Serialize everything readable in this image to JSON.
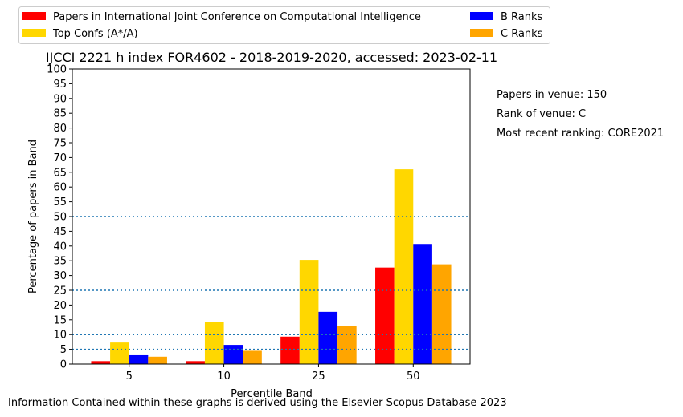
{
  "chart_data": {
    "type": "bar",
    "title": "IJCCI 2221 h index FOR4602 - 2018-2019-2020, accessed: 2023-02-11",
    "xlabel": "Percentile Band",
    "ylabel": "Percentage of papers in Band",
    "categories": [
      "5",
      "10",
      "25",
      "50"
    ],
    "ylim": [
      0,
      100
    ],
    "yticks": [
      "0",
      "5",
      "10",
      "15",
      "20",
      "25",
      "30",
      "35",
      "40",
      "45",
      "50",
      "55",
      "60",
      "65",
      "70",
      "75",
      "80",
      "85",
      "90",
      "95",
      "100"
    ],
    "reference_lines": [
      5,
      10,
      25,
      50
    ],
    "series": [
      {
        "name": "Papers in International Joint Conference on Computational Intelligence",
        "color": "#ff0000",
        "values": [
          1.0,
          1.0,
          9.3,
          32.7
        ]
      },
      {
        "name": "Top Confs (A*/A)",
        "color": "#ffd700",
        "values": [
          7.3,
          14.3,
          35.3,
          66.0
        ]
      },
      {
        "name": "B Ranks",
        "color": "#0000ff",
        "values": [
          3.0,
          6.5,
          17.7,
          40.7
        ]
      },
      {
        "name": "C Ranks",
        "color": "#ffa500",
        "values": [
          2.5,
          4.5,
          13.0,
          33.8
        ]
      }
    ],
    "legend_placement": "top, two columns",
    "grid": false
  },
  "info": {
    "papers": "Papers in venue: 150",
    "rank": "Rank of venue: C",
    "ranking": "Most recent ranking: CORE2021"
  },
  "footer": "Information Contained within these graphs is derived using the Elsevier Scopus Database 2023"
}
